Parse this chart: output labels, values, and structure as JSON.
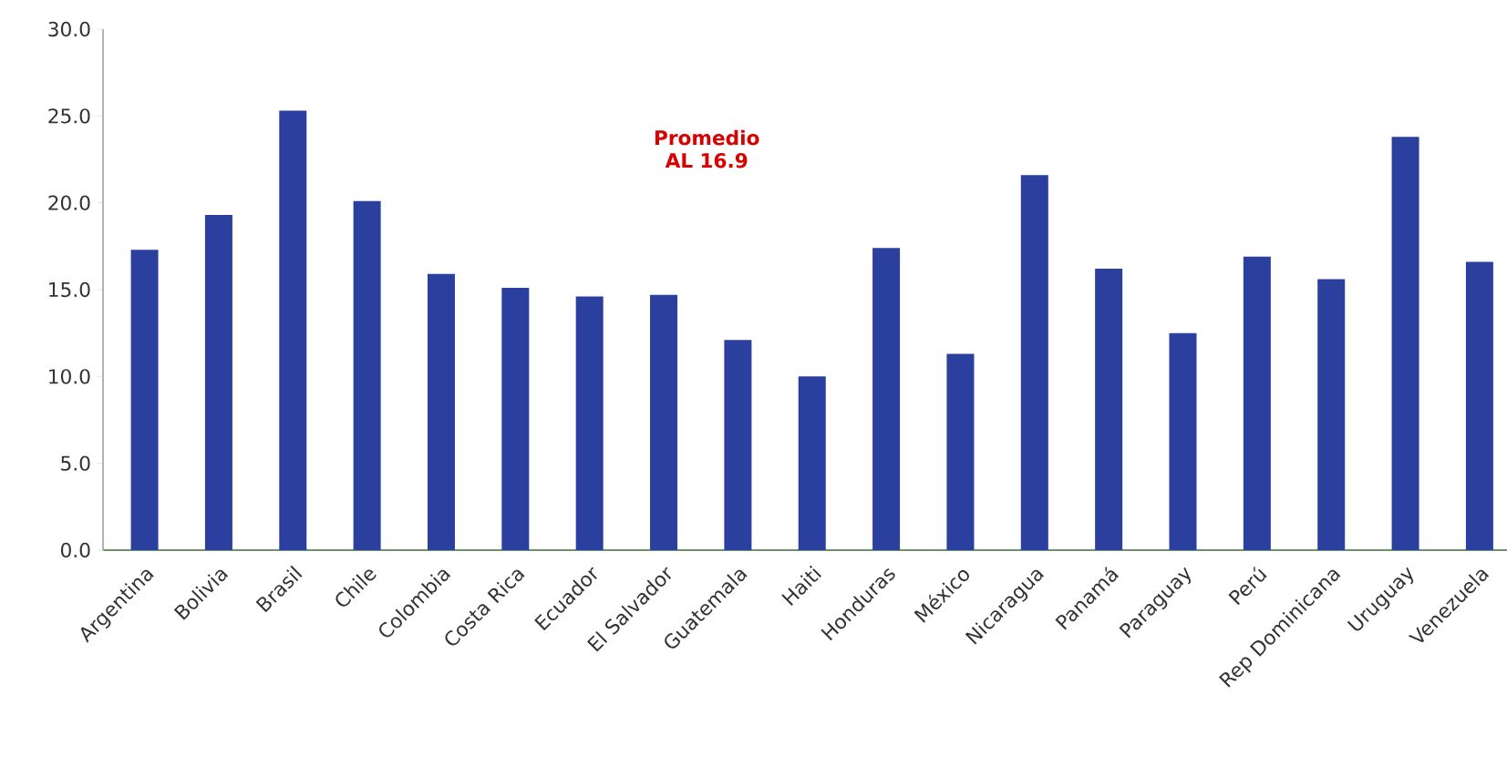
{
  "chart_data": {
    "type": "bar",
    "categories": [
      "Argentina",
      "Bolivia",
      "Brasil",
      "Chile",
      "Colombia",
      "Costa Rica",
      "Ecuador",
      "El Salvador",
      "Guatemala",
      "Haiti",
      "Honduras",
      "México",
      "Nicaragua",
      "Panamá",
      "Paraguay",
      "Perú",
      "Rep Dominicana",
      "Uruguay",
      "Venezuela"
    ],
    "values": [
      17.3,
      19.3,
      25.3,
      20.1,
      15.9,
      15.1,
      14.6,
      14.7,
      12.1,
      10.0,
      17.4,
      11.3,
      21.6,
      16.2,
      12.5,
      16.9,
      15.6,
      23.8,
      16.6
    ],
    "color": "#2b3f9e",
    "ylim": [
      0,
      30
    ],
    "yticks": [
      {
        "value": 0,
        "label": "0.0"
      },
      {
        "value": 5,
        "label": "5.0"
      },
      {
        "value": 10,
        "label": "10.0"
      },
      {
        "value": 15,
        "label": "15.0"
      },
      {
        "value": 20,
        "label": "20.0"
      },
      {
        "value": 25,
        "label": "25.0"
      },
      {
        "value": 30,
        "label": "30.0"
      }
    ],
    "annotations": [
      "Promedio AL 16.9"
    ]
  }
}
